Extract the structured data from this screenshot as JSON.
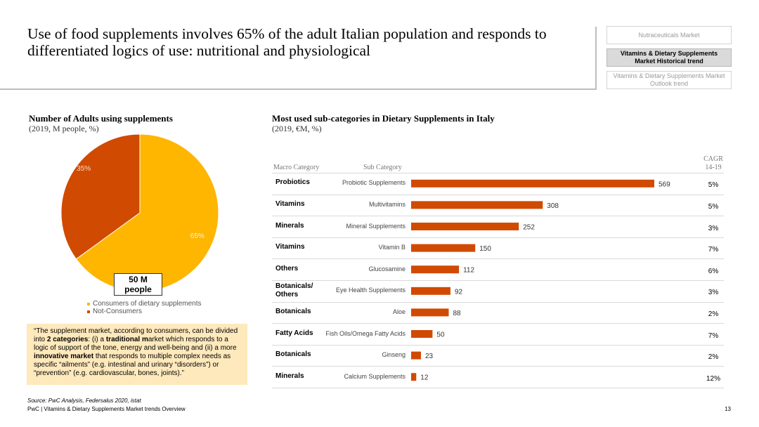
{
  "title": "Use of food supplements involves 65% of the adult Italian population and responds to differentiated logics of use: nutritional and physiological",
  "nav": [
    {
      "label": "Nutraceuticals Market",
      "active": false
    },
    {
      "label": "Vitamins & Dietary Supplements Market Historical trend",
      "active": true
    },
    {
      "label": "Vitamins & Dietary Supplements Market Outlook trend",
      "active": false
    }
  ],
  "left_section": {
    "title": "Number of Adults using supplements",
    "subtitle": "(2019, M people, %)",
    "people_label": "50 M people",
    "quote_html": "“The supplement market, according to consumers, can be divided into <b>2 categories</b>: (i) a <b>traditional m</b>arket which responds to a logic of support of the tone, energy and well-being and (ii) a more <b>innovative market</b> that responds to multiple complex needs as specific “ailments” (e.g. intestinal and urinary “disorders”) or “prevention” (e.g. cardiovascular, bones, joints).”"
  },
  "right_section": {
    "title": "Most used sub-categories in Dietary Supplements in Italy",
    "subtitle": "(2019, €M, %)",
    "header_macro": "Macro Category",
    "header_sub": "Sub Category",
    "header_cagr_line1": "CAGR",
    "header_cagr_line2": "14-19"
  },
  "colors": {
    "consumers": "#FFB600",
    "non_consumers": "#D04A02",
    "bar": "#D04A02"
  },
  "chart_data": [
    {
      "type": "pie",
      "title": "Number of Adults using supplements",
      "subtitle": "(2019, M people, %)",
      "slices": [
        {
          "name": "Consumers of dietary supplements",
          "value": 65,
          "label": "65%"
        },
        {
          "name": "Not-Consumers",
          "value": 35,
          "label": "35%"
        }
      ],
      "legend": [
        "Consumers of dietary supplements",
        "Not-Consumers"
      ],
      "legend_position": "bottom"
    },
    {
      "type": "bar",
      "orientation": "horizontal",
      "title": "Most used sub-categories in Dietary Supplements in Italy",
      "subtitle": "(2019, €M, %)",
      "xlim": [
        0,
        569
      ],
      "rows": [
        {
          "macro": "Probiotics",
          "sub": "Probiotic Supplements",
          "value": 569,
          "cagr": "5%"
        },
        {
          "macro": "Vitamins",
          "sub": "Multivitamins",
          "value": 308,
          "cagr": "5%"
        },
        {
          "macro": "Minerals",
          "sub": "Mineral Supplements",
          "value": 252,
          "cagr": "3%"
        },
        {
          "macro": "Vitamins",
          "sub": "Vitamin B",
          "value": 150,
          "cagr": "7%"
        },
        {
          "macro": "Others",
          "sub": "Glucosamine",
          "value": 112,
          "cagr": "6%"
        },
        {
          "macro": "Botanicals/ Others",
          "sub": "Eye Health Supplements",
          "value": 92,
          "cagr": "3%"
        },
        {
          "macro": "Botanicals",
          "sub": "Aloe",
          "value": 88,
          "cagr": "2%"
        },
        {
          "macro": "Fatty Acids",
          "sub": "Fish Oils/Omega Fatty Acids",
          "value": 50,
          "cagr": "7%"
        },
        {
          "macro": "Botanicals",
          "sub": "Ginseng",
          "value": 23,
          "cagr": "2%"
        },
        {
          "macro": "Minerals",
          "sub": "Calcium Supplements",
          "value": 12,
          "cagr": "12%"
        }
      ]
    }
  ],
  "footer": {
    "source": "Source: PwC Analysis, Federsalus 2020, istat",
    "text": "PwC | Vitamins & Dietary Supplements Market trends Overview",
    "page": "13"
  }
}
